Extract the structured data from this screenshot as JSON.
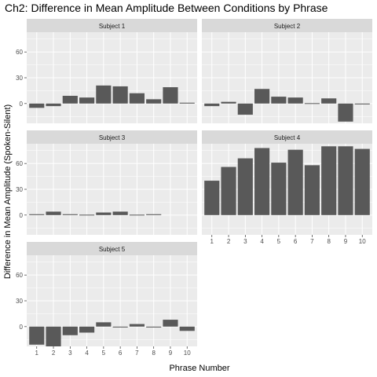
{
  "colors": {
    "panel_bg": "#ebebeb",
    "grid": "#ffffff",
    "strip_bg": "#d9d9d9",
    "bar": "#595959",
    "tick": "#333333"
  },
  "chart_data": {
    "type": "bar",
    "title": "Ch2: Difference in Mean Amplitude Between Conditions by Phrase",
    "xlabel": "Phrase Number",
    "ylabel": "Difference in Mean Amplitude (Spoken-Silent)",
    "categories": [
      "1",
      "2",
      "3",
      "4",
      "5",
      "6",
      "7",
      "8",
      "9",
      "10"
    ],
    "y_ticks": [
      "0",
      "30",
      "60"
    ],
    "ylim": [
      -23,
      83
    ],
    "grid": true,
    "facets": [
      {
        "name": "Subject 1",
        "values": [
          -5,
          -3,
          9,
          7,
          21,
          20,
          12,
          5,
          19,
          1
        ]
      },
      {
        "name": "Subject 2",
        "values": [
          -3,
          2,
          -13,
          17,
          8,
          7,
          0,
          6,
          -21,
          -1
        ]
      },
      {
        "name": "Subject 3",
        "values": [
          1,
          4,
          1,
          0,
          3,
          4,
          0,
          1,
          null,
          null
        ]
      },
      {
        "name": "Subject 4",
        "values": [
          40,
          56,
          66,
          78,
          61,
          76,
          58,
          80,
          80,
          77
        ]
      },
      {
        "name": "Subject 5",
        "values": [
          -21,
          -23,
          -10,
          -7,
          5,
          -1,
          3,
          -1,
          8,
          -5
        ]
      }
    ]
  }
}
